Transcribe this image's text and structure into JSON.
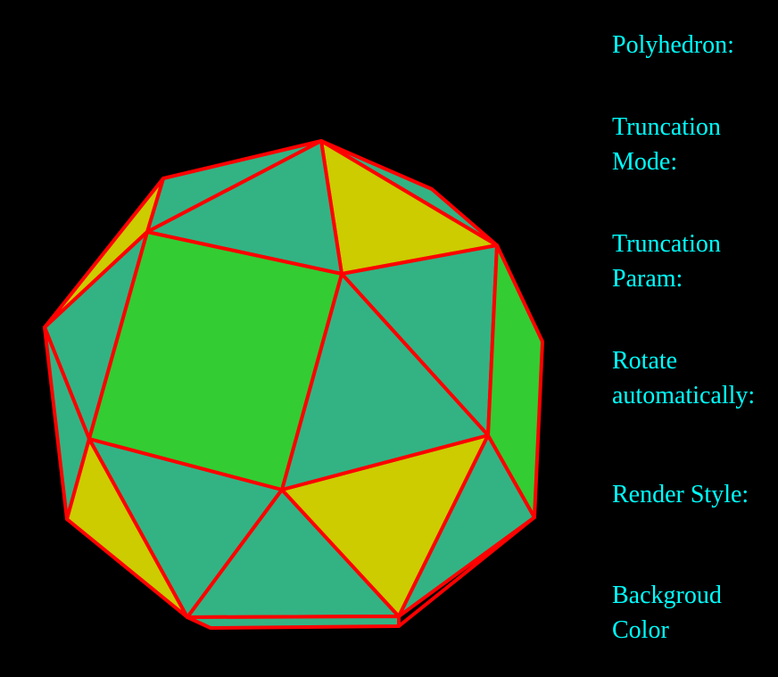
{
  "colors": {
    "background": "#000000",
    "label_text": "#00ffff",
    "edge": "#ff0000",
    "triangle_face_primary": "#33b383",
    "triangle_face_secondary": "#cccc00",
    "square_face": "#33cc33"
  },
  "controls": {
    "polyhedron_label": "Polyhedron:",
    "truncation_mode_label": [
      "Truncation",
      "Mode:"
    ],
    "truncation_param_label": [
      "Truncation",
      "Param:"
    ],
    "rotate_label": [
      "Rotate",
      "automatically:"
    ],
    "render_style_label": "Render Style:",
    "background_color_label": [
      "Backgroud",
      "Color"
    ]
  }
}
